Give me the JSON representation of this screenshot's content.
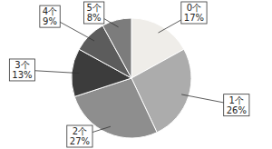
{
  "chart_data": {
    "type": "pie",
    "categories": [
      "0个",
      "1个",
      "2个",
      "3个",
      "4个",
      "5个"
    ],
    "values": [
      17,
      26,
      27,
      13,
      9,
      8
    ],
    "value_labels": [
      "17%",
      "26%",
      "27%",
      "13%",
      "9%",
      "8%"
    ],
    "colors": [
      "#efede9",
      "#acacac",
      "#8e8e8e",
      "#3c3c3c",
      "#5c5c5c",
      "#7c7c7c"
    ],
    "data_labels": true
  }
}
